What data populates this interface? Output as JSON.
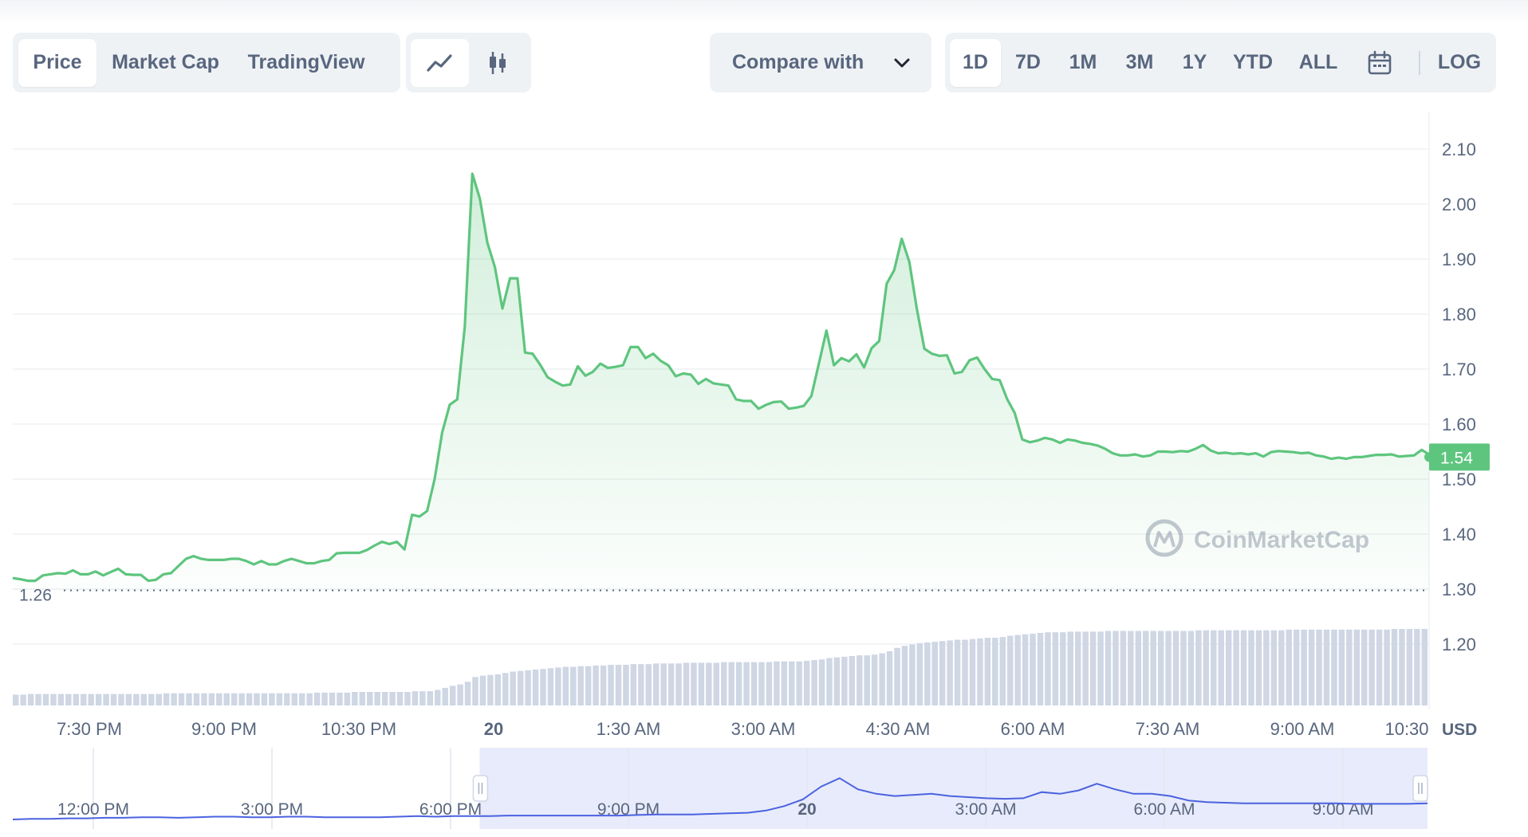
{
  "tabs": {
    "view_tabs": [
      "Price",
      "Market Cap",
      "TradingView"
    ],
    "active_view": "Price",
    "chart_style_icons": [
      "line-chart-icon",
      "candlestick-icon"
    ],
    "compare_label": "Compare with",
    "ranges": [
      "1D",
      "7D",
      "1M",
      "3M",
      "1Y",
      "YTD",
      "ALL"
    ],
    "active_range": "1D",
    "calendar_icon": "calendar-icon",
    "log_label": "LOG"
  },
  "colors": {
    "line": "#5ec57e",
    "area_top": "#d9f2e2",
    "volume": "#cfd6e4",
    "navigator_line": "#4a62e0",
    "navigator_fill": "#e8ebfb",
    "grid": "#eef0f3",
    "text": "#58667e"
  },
  "chart_data": {
    "type": "line",
    "title": "",
    "xlabel": "",
    "ylabel": "USD",
    "ylim": [
      1.1,
      2.15
    ],
    "y_ticks": [
      1.2,
      1.3,
      1.4,
      1.5,
      1.6,
      1.7,
      1.8,
      1.9,
      2.0,
      2.1
    ],
    "y_tick_labels": [
      "1.20",
      "1.30",
      "1.40",
      "1.50",
      "1.60",
      "1.70",
      "1.80",
      "1.90",
      "2.00",
      "2.10"
    ],
    "x_tick_labels": [
      "7:30 PM",
      "9:00 PM",
      "10:30 PM",
      "20",
      "1:30 AM",
      "3:00 AM",
      "4:30 AM",
      "6:00 AM",
      "7:30 AM",
      "9:00 AM",
      "10:30"
    ],
    "y_unit": "USD",
    "open_price": 1.26,
    "open_price_label": "1.26",
    "current_price": 1.54,
    "current_price_label": "1.54",
    "watermark": "CoinMarketCap",
    "series": [
      {
        "values": [
          1.32,
          1.318,
          1.315,
          1.315,
          1.325,
          1.327,
          1.329,
          1.328,
          1.334,
          1.327,
          1.327,
          1.332,
          1.325,
          1.331,
          1.337,
          1.327,
          1.326,
          1.326,
          1.315,
          1.317,
          1.327,
          1.329,
          1.342,
          1.355,
          1.36,
          1.355,
          1.353,
          1.353,
          1.353,
          1.355,
          1.355,
          1.351,
          1.345,
          1.351,
          1.345,
          1.345,
          1.351,
          1.355,
          1.351,
          1.347,
          1.347,
          1.351,
          1.353,
          1.365,
          1.366,
          1.366,
          1.366,
          1.371,
          1.379,
          1.386,
          1.382,
          1.386,
          1.372,
          1.435,
          1.432,
          1.442,
          1.5,
          1.585,
          1.635,
          1.645,
          1.777,
          2.055,
          2.01,
          1.93,
          1.885,
          1.81,
          1.865,
          1.865,
          1.73,
          1.728,
          1.708,
          1.685,
          1.677,
          1.67,
          1.672,
          1.705,
          1.688,
          1.695,
          1.71,
          1.702,
          1.704,
          1.707,
          1.74,
          1.74,
          1.72,
          1.728,
          1.715,
          1.707,
          1.687,
          1.692,
          1.69,
          1.673,
          1.682,
          1.674,
          1.672,
          1.67,
          1.645,
          1.642,
          1.642,
          1.628,
          1.635,
          1.64,
          1.641,
          1.628,
          1.63,
          1.633,
          1.651,
          1.71,
          1.77,
          1.707,
          1.72,
          1.714,
          1.727,
          1.703,
          1.738,
          1.751,
          1.855,
          1.88,
          1.937,
          1.895,
          1.81,
          1.737,
          1.728,
          1.724,
          1.725,
          1.692,
          1.695,
          1.716,
          1.721,
          1.7,
          1.682,
          1.68,
          1.645,
          1.62,
          1.572,
          1.567,
          1.57,
          1.575,
          1.572,
          1.566,
          1.572,
          1.57,
          1.566,
          1.564,
          1.561,
          1.555,
          1.547,
          1.543,
          1.543,
          1.545,
          1.541,
          1.543,
          1.55,
          1.55,
          1.549,
          1.551,
          1.55,
          1.555,
          1.562,
          1.552,
          1.547,
          1.548,
          1.546,
          1.547,
          1.545,
          1.547,
          1.541,
          1.549,
          1.551,
          1.55,
          1.549,
          1.547,
          1.548,
          1.543,
          1.541,
          1.537,
          1.539,
          1.537,
          1.54,
          1.54,
          1.542,
          1.544,
          1.544,
          1.545,
          1.541,
          1.542,
          1.543,
          1.553,
          1.545
        ]
      }
    ],
    "volume_relative": [
      0.16,
      0.16,
      0.17,
      0.17,
      0.17,
      0.17,
      0.17,
      0.17,
      0.17,
      0.17,
      0.17,
      0.17,
      0.17,
      0.17,
      0.17,
      0.17,
      0.17,
      0.17,
      0.17,
      0.17,
      0.18,
      0.18,
      0.18,
      0.18,
      0.18,
      0.18,
      0.18,
      0.18,
      0.18,
      0.18,
      0.18,
      0.18,
      0.18,
      0.18,
      0.18,
      0.18,
      0.18,
      0.18,
      0.18,
      0.18,
      0.19,
      0.19,
      0.19,
      0.19,
      0.19,
      0.2,
      0.2,
      0.2,
      0.2,
      0.2,
      0.2,
      0.2,
      0.2,
      0.21,
      0.21,
      0.21,
      0.23,
      0.26,
      0.29,
      0.31,
      0.35,
      0.42,
      0.44,
      0.45,
      0.46,
      0.48,
      0.5,
      0.51,
      0.52,
      0.53,
      0.54,
      0.55,
      0.56,
      0.57,
      0.57,
      0.58,
      0.58,
      0.59,
      0.59,
      0.6,
      0.6,
      0.6,
      0.61,
      0.61,
      0.61,
      0.62,
      0.62,
      0.62,
      0.62,
      0.63,
      0.63,
      0.63,
      0.63,
      0.63,
      0.64,
      0.64,
      0.64,
      0.64,
      0.64,
      0.64,
      0.64,
      0.65,
      0.65,
      0.65,
      0.65,
      0.66,
      0.67,
      0.68,
      0.7,
      0.71,
      0.72,
      0.73,
      0.74,
      0.74,
      0.75,
      0.77,
      0.8,
      0.85,
      0.88,
      0.9,
      0.92,
      0.93,
      0.94,
      0.95,
      0.96,
      0.97,
      0.97,
      0.98,
      0.99,
      1.0,
      1.0,
      1.01,
      1.03,
      1.04,
      1.05,
      1.06,
      1.07,
      1.08,
      1.08,
      1.08,
      1.09,
      1.09,
      1.09,
      1.09,
      1.09,
      1.1,
      1.1,
      1.1,
      1.1,
      1.1,
      1.1,
      1.1,
      1.1,
      1.1,
      1.1,
      1.1,
      1.1,
      1.11,
      1.11,
      1.11,
      1.11,
      1.11,
      1.11,
      1.11,
      1.11,
      1.11,
      1.11,
      1.11,
      1.11,
      1.12,
      1.12,
      1.12,
      1.12,
      1.12,
      1.12,
      1.12,
      1.12,
      1.12,
      1.12,
      1.12,
      1.12,
      1.12,
      1.12,
      1.13,
      1.13,
      1.13,
      1.13,
      1.13
    ],
    "navigator": {
      "x_tick_labels": [
        "12:00 PM",
        "3:00 PM",
        "6:00 PM",
        "9:00 PM",
        "20",
        "3:00 AM",
        "6:00 AM",
        "9:00 AM"
      ],
      "selection_fraction": [
        0.33,
        1.0
      ],
      "values": [
        1.26,
        1.27,
        1.27,
        1.28,
        1.28,
        1.29,
        1.29,
        1.3,
        1.3,
        1.29,
        1.3,
        1.31,
        1.31,
        1.3,
        1.3,
        1.31,
        1.31,
        1.3,
        1.3,
        1.3,
        1.3,
        1.31,
        1.32,
        1.31,
        1.32,
        1.32,
        1.32,
        1.33,
        1.33,
        1.33,
        1.33,
        1.33,
        1.33,
        1.33,
        1.34,
        1.35,
        1.35,
        1.35,
        1.36,
        1.37,
        1.38,
        1.42,
        1.5,
        1.62,
        1.85,
        2.0,
        1.8,
        1.72,
        1.68,
        1.7,
        1.72,
        1.68,
        1.66,
        1.64,
        1.63,
        1.64,
        1.75,
        1.72,
        1.78,
        1.9,
        1.8,
        1.72,
        1.72,
        1.68,
        1.6,
        1.57,
        1.56,
        1.55,
        1.55,
        1.55,
        1.55,
        1.55,
        1.55,
        1.54,
        1.54,
        1.54,
        1.54,
        1.55
      ]
    }
  }
}
